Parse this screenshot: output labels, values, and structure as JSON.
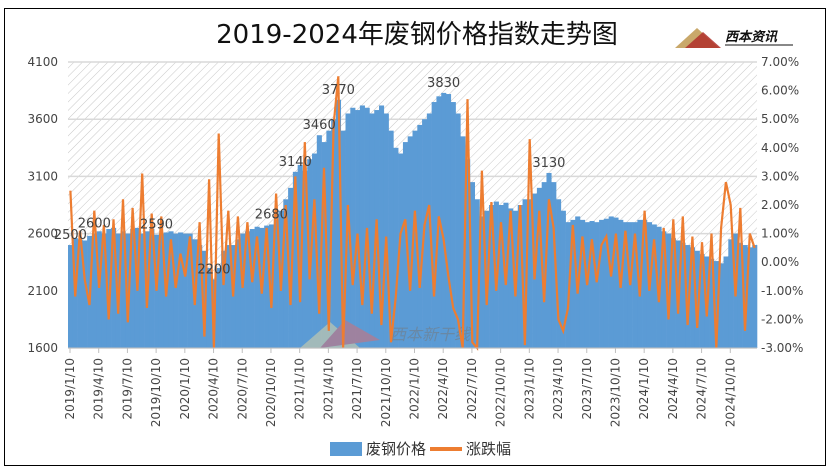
{
  "chart_data": {
    "type": "bar+line",
    "title": "2019-2024年废钢价格指数走势图",
    "logo_text": "西本资讯",
    "watermark_text": "西本新干线",
    "colors": {
      "price": "#5b9bd5",
      "change": "#ed7d31"
    },
    "y_left": {
      "range": [
        1600,
        4100
      ],
      "ticks": [
        "4100",
        "3600",
        "3100",
        "2600",
        "2100",
        "1600"
      ]
    },
    "y_right": {
      "range": [
        -3,
        7
      ],
      "ticks": [
        "7.00%",
        "6.00%",
        "5.00%",
        "4.00%",
        "3.00%",
        "2.00%",
        "1.00%",
        "0.00%",
        "-1.00%",
        "-2.00%",
        "-3.00%"
      ]
    },
    "x_ticks": [
      "2019/1/10",
      "2019/4/10",
      "2019/7/10",
      "2019/10/10",
      "2020/1/10",
      "2020/4/10",
      "2020/7/10",
      "2020/10/10",
      "2021/1/10",
      "2021/4/10",
      "2021/7/10",
      "2021/10/10",
      "2022/1/10",
      "2022/4/10",
      "2022/7/10",
      "2022/10/10",
      "2023/1/10",
      "2023/4/10",
      "2023/7/10",
      "2023/10/10",
      "2024/1/10",
      "2024/4/10",
      "2024/7/10",
      "2024/10/10"
    ],
    "grid": true,
    "legend_position": "bottom",
    "series": [
      {
        "name": "废钢价格",
        "type": "bar",
        "values": [
          2500,
          2560,
          2550,
          2540,
          2580,
          2600,
          2620,
          2600,
          2640,
          2650,
          2600,
          2620,
          2600,
          2640,
          2650,
          2600,
          2620,
          2640,
          2590,
          2600,
          2610,
          2620,
          2600,
          2610,
          2600,
          2600,
          2550,
          2500,
          2450,
          2300,
          2200,
          2300,
          2450,
          2500,
          2500,
          2550,
          2600,
          2620,
          2640,
          2660,
          2650,
          2670,
          2680,
          2720,
          2800,
          2900,
          3000,
          3140,
          3200,
          3150,
          3250,
          3300,
          3460,
          3400,
          3500,
          3600,
          3770,
          3500,
          3650,
          3700,
          3680,
          3720,
          3700,
          3650,
          3680,
          3720,
          3650,
          3500,
          3350,
          3300,
          3400,
          3450,
          3500,
          3550,
          3600,
          3650,
          3750,
          3800,
          3830,
          3820,
          3750,
          3650,
          3450,
          3250,
          3050,
          2900,
          2750,
          2800,
          2850,
          2880,
          2850,
          2870,
          2820,
          2800,
          2850,
          2900,
          2900,
          2950,
          3000,
          3050,
          3130,
          3050,
          2900,
          2800,
          2700,
          2720,
          2750,
          2720,
          2700,
          2710,
          2700,
          2720,
          2730,
          2750,
          2740,
          2720,
          2700,
          2700,
          2700,
          2720,
          2720,
          2700,
          2680,
          2660,
          2620,
          2600,
          2560,
          2540,
          2520,
          2500,
          2480,
          2450,
          2420,
          2400,
          2380,
          2360,
          2340,
          2400,
          2550,
          2600,
          2520,
          2500,
          2480,
          2500
        ]
      },
      {
        "name": "涨跌幅",
        "type": "line",
        "unit": "%",
        "values": [
          2.5,
          -1.2,
          1.1,
          -0.6,
          -1.5,
          1.8,
          -0.9,
          1.3,
          -2.0,
          1.5,
          -1.8,
          2.2,
          -2.1,
          1.9,
          -1.0,
          3.1,
          -1.6,
          1.7,
          -1.0,
          1.6,
          -1.2,
          0.8,
          -0.9,
          0.3,
          -0.5,
          0.9,
          -1.5,
          1.4,
          -2.6,
          2.9,
          -3.0,
          4.5,
          -0.8,
          1.8,
          -1.2,
          1.6,
          -0.9,
          1.4,
          -0.7,
          0.9,
          -1.1,
          1.2,
          -1.6,
          2.4,
          -1.0,
          2.0,
          -1.5,
          3.0,
          -1.4,
          4.2,
          -0.6,
          2.2,
          -1.8,
          3.3,
          -2.4,
          4.8,
          6.5,
          -3.0,
          2.0,
          -0.8,
          1.0,
          -1.5,
          1.2,
          -1.8,
          1.5,
          -2.2,
          0.9,
          -2.8,
          -1.2,
          1.0,
          1.5,
          -1.0,
          1.8,
          -0.9,
          1.3,
          2.0,
          -1.2,
          1.6,
          0.8,
          -0.5,
          -1.6,
          -2.0,
          -3.0,
          5.7,
          -2.8,
          -3.0,
          3.2,
          -1.5,
          2.1,
          -1.0,
          1.4,
          -0.8,
          1.8,
          -1.2,
          2.0,
          -2.9,
          4.3,
          -0.6,
          1.8,
          -1.4,
          2.2,
          1.2,
          -2.0,
          -2.4,
          -1.6,
          1.3,
          -1.1,
          0.9,
          -0.8,
          0.8,
          -0.7,
          0.6,
          0.9,
          -0.5,
          1.0,
          -0.9,
          1.1,
          -0.8,
          1.0,
          -1.2,
          1.8,
          -1.0,
          0.8,
          -1.4,
          1.2,
          -2.0,
          1.5,
          -1.8,
          1.6,
          -2.2,
          0.9,
          -2.3,
          0.7,
          -1.9,
          1.0,
          -3.0,
          1.2,
          2.8,
          2.0,
          -1.2,
          1.9,
          -2.4,
          1.0,
          0.5
        ]
      }
    ],
    "data_labels": [
      {
        "index": 0,
        "text": "2500"
      },
      {
        "index": 5,
        "text": "2600"
      },
      {
        "index": 18,
        "text": "2590"
      },
      {
        "index": 30,
        "text": "2200"
      },
      {
        "index": 42,
        "text": "2680"
      },
      {
        "index": 47,
        "text": "3140"
      },
      {
        "index": 52,
        "text": "3460"
      },
      {
        "index": 56,
        "text": "3770"
      },
      {
        "index": 78,
        "text": "3830"
      },
      {
        "index": 100,
        "text": "3130"
      }
    ]
  }
}
